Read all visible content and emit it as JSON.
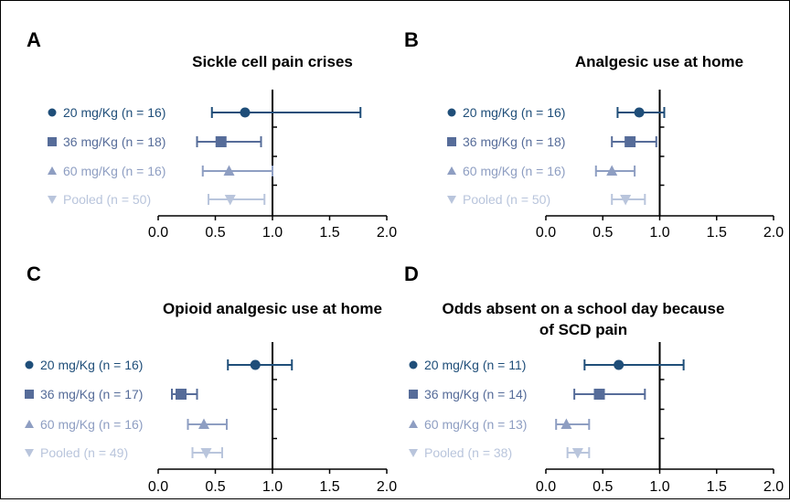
{
  "chart_data": [
    {
      "panel": "A",
      "type": "forest",
      "title": [
        "Sickle cell pain crises"
      ],
      "xlim": [
        0.0,
        2.0
      ],
      "ticks": [
        "0.0",
        "0.5",
        "1.0",
        "1.5",
        "2.0"
      ],
      "reference_line": 1.0,
      "series": [
        {
          "name": "20 mg/Kg (n = 16)",
          "marker": "circle",
          "color": "#1f4e79",
          "estimate": 0.76,
          "lower": 0.47,
          "upper": 1.77
        },
        {
          "name": "36 mg/Kg (n = 18)",
          "marker": "square",
          "color": "#566c99",
          "estimate": 0.55,
          "lower": 0.34,
          "upper": 0.9
        },
        {
          "name": "60 mg/Kg (n = 16)",
          "marker": "triangle-up",
          "color": "#8e9ec2",
          "estimate": 0.62,
          "lower": 0.39,
          "upper": 1.0
        },
        {
          "name": "Pooled (n = 50)",
          "marker": "triangle-down",
          "color": "#b9c5dc",
          "estimate": 0.63,
          "lower": 0.44,
          "upper": 0.93
        }
      ]
    },
    {
      "panel": "B",
      "type": "forest",
      "title": [
        "Analgesic use at home"
      ],
      "xlim": [
        0.0,
        2.0
      ],
      "ticks": [
        "0.0",
        "0.5",
        "1.0",
        "1.5",
        "2.0"
      ],
      "reference_line": 1.0,
      "series": [
        {
          "name": "20 mg/Kg (n = 16)",
          "marker": "circle",
          "color": "#1f4e79",
          "estimate": 0.82,
          "lower": 0.63,
          "upper": 1.04
        },
        {
          "name": "36 mg/Kg (n = 18)",
          "marker": "square",
          "color": "#566c99",
          "estimate": 0.74,
          "lower": 0.58,
          "upper": 0.97
        },
        {
          "name": "60 mg/Kg (n = 16)",
          "marker": "triangle-up",
          "color": "#8e9ec2",
          "estimate": 0.58,
          "lower": 0.44,
          "upper": 0.78
        },
        {
          "name": "Pooled (n = 50)",
          "marker": "triangle-down",
          "color": "#b9c5dc",
          "estimate": 0.7,
          "lower": 0.58,
          "upper": 0.87
        }
      ]
    },
    {
      "panel": "C",
      "type": "forest",
      "title": [
        "Opioid analgesic use at home"
      ],
      "xlim": [
        0.0,
        2.0
      ],
      "ticks": [
        "0.0",
        "0.5",
        "1.0",
        "1.5",
        "2.0"
      ],
      "reference_line": 1.0,
      "series": [
        {
          "name": "20 mg/Kg (n = 16)",
          "marker": "circle",
          "color": "#1f4e79",
          "estimate": 0.85,
          "lower": 0.61,
          "upper": 1.17
        },
        {
          "name": "36 mg/Kg (n = 17)",
          "marker": "square",
          "color": "#566c99",
          "estimate": 0.2,
          "lower": 0.12,
          "upper": 0.34
        },
        {
          "name": "60 mg/Kg (n = 16)",
          "marker": "triangle-up",
          "color": "#8e9ec2",
          "estimate": 0.4,
          "lower": 0.26,
          "upper": 0.6
        },
        {
          "name": "Pooled (n = 49)",
          "marker": "triangle-down",
          "color": "#b9c5dc",
          "estimate": 0.42,
          "lower": 0.3,
          "upper": 0.56
        }
      ]
    },
    {
      "panel": "D",
      "type": "forest",
      "title": [
        "Odds absent on a school day because",
        "of SCD pain"
      ],
      "xlim": [
        0.0,
        2.0
      ],
      "ticks": [
        "0.0",
        "0.5",
        "1.0",
        "1.5",
        "2.0"
      ],
      "reference_line": 1.0,
      "series": [
        {
          "name": "20 mg/Kg (n = 11)",
          "marker": "circle",
          "color": "#1f4e79",
          "estimate": 0.64,
          "lower": 0.34,
          "upper": 1.21
        },
        {
          "name": "36 mg/Kg (n = 14)",
          "marker": "square",
          "color": "#566c99",
          "estimate": 0.47,
          "lower": 0.25,
          "upper": 0.87
        },
        {
          "name": "60 mg/Kg (n = 13)",
          "marker": "triangle-up",
          "color": "#8e9ec2",
          "estimate": 0.18,
          "lower": 0.09,
          "upper": 0.38
        },
        {
          "name": "Pooled (n = 38)",
          "marker": "triangle-down",
          "color": "#b9c5dc",
          "estimate": 0.28,
          "lower": 0.19,
          "upper": 0.38
        }
      ]
    }
  ]
}
